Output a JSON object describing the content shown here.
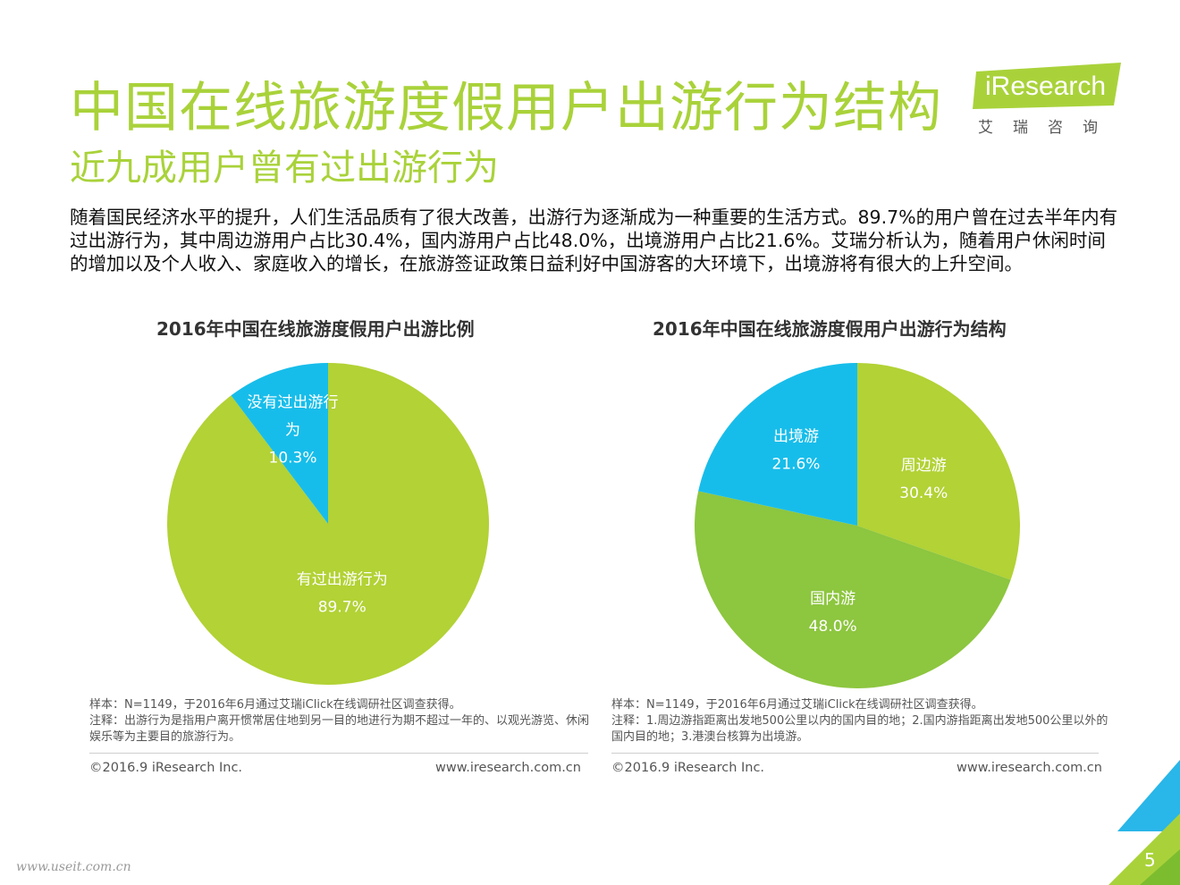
{
  "title": "中国在线旅游度假用户出游行为结构",
  "subtitle": "近九成用户曾有过出游行为",
  "logo": {
    "text": "iResearch",
    "sub": "艾瑞咨询"
  },
  "intro": "随着国民经济水平的提升，人们生活品质有了很大改善，出游行为逐渐成为一种重要的生活方式。89.7%的用户曾在过去半年内有过出游行为，其中周边游用户占比30.4%，国内游用户占比48.0%，出境游用户占比21.6%。艾瑞分析认为，随着用户休闲时间的增加以及个人收入、家庭收入的增长，在旅游签证政策日益利好中国游客的大环境下，出境游将有很大的上升空间。",
  "colors": {
    "accent": "#a9d23a",
    "pie_green": "#b2d235",
    "pie_mid_green": "#8dc63f",
    "pie_cyan": "#17bdea"
  },
  "chart_data": [
    {
      "type": "pie",
      "title": "2016年中国在线旅游度假用户出游比例",
      "slices": [
        {
          "label": "有过出游行为",
          "value": 89.7,
          "value_label": "89.7%",
          "color": "#b2d235"
        },
        {
          "label": "没有过出游行为",
          "value": 10.3,
          "value_label": "10.3%",
          "color": "#17bdea"
        }
      ]
    },
    {
      "type": "pie",
      "title": "2016年中国在线旅游度假用户出游行为结构",
      "slices": [
        {
          "label": "周边游",
          "value": 30.4,
          "value_label": "30.4%",
          "color": "#b2d235"
        },
        {
          "label": "国内游",
          "value": 48.0,
          "value_label": "48.0%",
          "color": "#8dc63f"
        },
        {
          "label": "出境游",
          "value": 21.6,
          "value_label": "21.6%",
          "color": "#17bdea"
        }
      ]
    }
  ],
  "notes": {
    "left": {
      "sample": "样本：N=1149，于2016年6月通过艾瑞iClick在线调研社区调查获得。",
      "note": "注释：出游行为是指用户离开惯常居住地到另一目的地进行为期不超过一年的、以观光游览、休闲娱乐等为主要目的旅游行为。"
    },
    "right": {
      "sample": "样本：N=1149，于2016年6月通过艾瑞iClick在线调研社区调查获得。",
      "note": "注释：1.周边游指距离出发地500公里以内的国内目的地；2.国内游指距离出发地500公里以外的国内目的地；3.港澳台核算为出境游。"
    }
  },
  "footer": {
    "copyright": "©2016.9 iResearch Inc.",
    "url": "www.iresearch.com.cn"
  },
  "page_number": "5",
  "watermark": "www.useit.com.cn"
}
